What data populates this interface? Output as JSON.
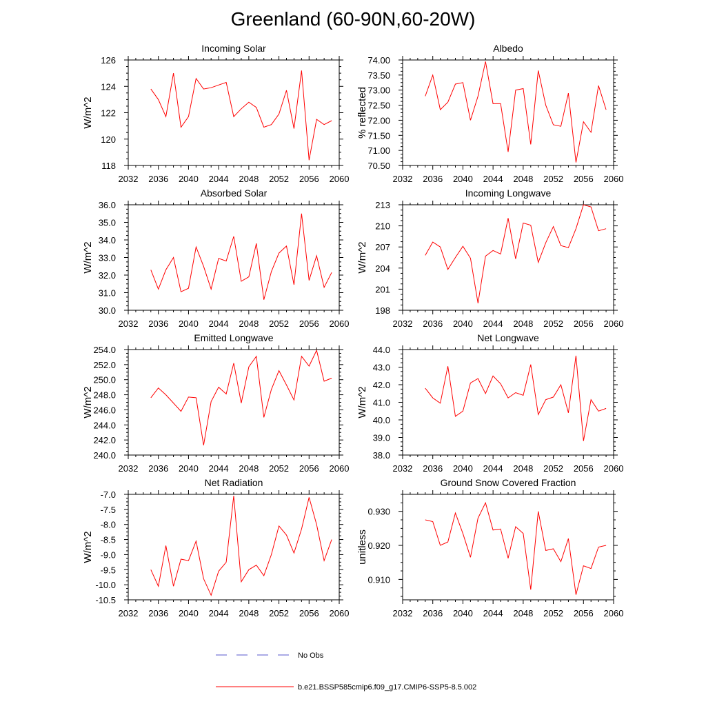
{
  "figure": {
    "title": "Greenland (60-90N,60-20W)"
  },
  "legend": {
    "items": [
      {
        "label": "No Obs",
        "color": "#5555cc",
        "style": "dashed"
      },
      {
        "label": "b.e21.BSSP585cmip6.f09_g17.CMIP6-SSP5-8.5.002",
        "color": "#ff0000",
        "style": "solid"
      }
    ]
  },
  "chart_data": [
    {
      "type": "line",
      "title": "Incoming Solar",
      "ylabel": "W/m^2",
      "xlim": [
        2032,
        2060
      ],
      "ylim": [
        118,
        126
      ],
      "yticks": [
        118,
        120,
        122,
        124,
        126
      ],
      "ytick_labels": [
        "118",
        "120",
        "122",
        "124",
        "126"
      ],
      "xticks": [
        2032,
        2036,
        2040,
        2044,
        2048,
        2052,
        2056,
        2060
      ],
      "x": [
        2035,
        2036,
        2037,
        2038,
        2039,
        2040,
        2041,
        2042,
        2043,
        2044,
        2045,
        2046,
        2047,
        2048,
        2049,
        2050,
        2051,
        2052,
        2053,
        2054,
        2055,
        2056,
        2057,
        2058,
        2059
      ],
      "series": [
        {
          "color": "#ff0000",
          "values": [
            123.8,
            123.0,
            121.7,
            125.0,
            120.9,
            121.7,
            124.6,
            123.8,
            123.9,
            124.1,
            124.3,
            121.7,
            122.3,
            122.8,
            122.4,
            120.9,
            121.1,
            121.9,
            123.7,
            120.8,
            125.2,
            118.4,
            121.5,
            121.1,
            121.4
          ]
        }
      ]
    },
    {
      "type": "line",
      "title": "Albedo",
      "ylabel": "% reflected",
      "xlim": [
        2032,
        2060
      ],
      "ylim": [
        70.5,
        74.0
      ],
      "yticks": [
        70.5,
        71.0,
        71.5,
        72.0,
        72.5,
        73.0,
        73.5,
        74.0
      ],
      "ytick_labels": [
        "70.50",
        "71.00",
        "71.50",
        "72.00",
        "72.50",
        "73.00",
        "73.50",
        "74.00"
      ],
      "xticks": [
        2032,
        2036,
        2040,
        2044,
        2048,
        2052,
        2056,
        2060
      ],
      "x": [
        2035,
        2036,
        2037,
        2038,
        2039,
        2040,
        2041,
        2042,
        2043,
        2044,
        2045,
        2046,
        2047,
        2048,
        2049,
        2050,
        2051,
        2052,
        2053,
        2054,
        2055,
        2056,
        2057,
        2058,
        2059
      ],
      "series": [
        {
          "color": "#ff0000",
          "values": [
            72.8,
            73.5,
            72.35,
            72.6,
            73.2,
            73.25,
            72.0,
            72.8,
            73.95,
            72.55,
            72.55,
            70.95,
            73.0,
            73.05,
            71.2,
            73.65,
            72.5,
            71.85,
            71.8,
            72.9,
            70.6,
            71.95,
            71.6,
            73.15,
            72.35
          ]
        }
      ]
    },
    {
      "type": "line",
      "title": "Absorbed Solar",
      "ylabel": "W/m^2",
      "xlim": [
        2032,
        2060
      ],
      "ylim": [
        30.0,
        36.0
      ],
      "yticks": [
        30,
        31,
        32,
        33,
        34,
        35,
        36
      ],
      "ytick_labels": [
        "30.0",
        "31.0",
        "32.0",
        "33.0",
        "34.0",
        "35.0",
        "36.0"
      ],
      "xticks": [
        2032,
        2036,
        2040,
        2044,
        2048,
        2052,
        2056,
        2060
      ],
      "x": [
        2035,
        2036,
        2037,
        2038,
        2039,
        2040,
        2041,
        2042,
        2043,
        2044,
        2045,
        2046,
        2047,
        2048,
        2049,
        2050,
        2051,
        2052,
        2053,
        2054,
        2055,
        2056,
        2057,
        2058,
        2059
      ],
      "series": [
        {
          "color": "#ff0000",
          "values": [
            32.3,
            31.2,
            32.3,
            33.0,
            31.05,
            31.25,
            33.6,
            32.5,
            31.2,
            32.95,
            32.8,
            34.2,
            31.65,
            31.9,
            33.8,
            30.6,
            32.2,
            33.25,
            33.65,
            31.45,
            35.5,
            31.7,
            33.1,
            31.3,
            32.15
          ]
        }
      ]
    },
    {
      "type": "line",
      "title": "Incoming Longwave",
      "ylabel": "W/m^2",
      "xlim": [
        2032,
        2060
      ],
      "ylim": [
        198,
        213
      ],
      "yticks": [
        198,
        201,
        204,
        207,
        210,
        213
      ],
      "ytick_labels": [
        "198",
        "201",
        "204",
        "207",
        "210",
        "213"
      ],
      "xticks": [
        2032,
        2036,
        2040,
        2044,
        2048,
        2052,
        2056,
        2060
      ],
      "x": [
        2035,
        2036,
        2037,
        2038,
        2039,
        2040,
        2041,
        2042,
        2043,
        2044,
        2045,
        2046,
        2047,
        2048,
        2049,
        2050,
        2051,
        2052,
        2053,
        2054,
        2055,
        2056,
        2057,
        2058,
        2059
      ],
      "series": [
        {
          "color": "#ff0000",
          "values": [
            205.8,
            207.7,
            207.0,
            203.8,
            205.5,
            207.1,
            205.4,
            199.0,
            205.7,
            206.5,
            206.0,
            211.1,
            205.3,
            210.4,
            210.1,
            204.8,
            207.6,
            209.9,
            207.2,
            206.9,
            209.6,
            213.0,
            212.7,
            209.3,
            209.6
          ]
        }
      ]
    },
    {
      "type": "line",
      "title": "Emitted Longwave",
      "ylabel": "W/m^2",
      "xlim": [
        2032,
        2060
      ],
      "ylim": [
        240.0,
        254.0
      ],
      "yticks": [
        240,
        242,
        244,
        246,
        248,
        250,
        252,
        254
      ],
      "ytick_labels": [
        "240.0",
        "242.0",
        "244.0",
        "246.0",
        "248.0",
        "250.0",
        "252.0",
        "254.0"
      ],
      "xticks": [
        2032,
        2036,
        2040,
        2044,
        2048,
        2052,
        2056,
        2060
      ],
      "x": [
        2035,
        2036,
        2037,
        2038,
        2039,
        2040,
        2041,
        2042,
        2043,
        2044,
        2045,
        2046,
        2047,
        2048,
        2049,
        2050,
        2051,
        2052,
        2053,
        2054,
        2055,
        2056,
        2057,
        2058,
        2059
      ],
      "series": [
        {
          "color": "#ff0000",
          "values": [
            247.6,
            248.9,
            248.0,
            246.9,
            245.8,
            247.7,
            247.6,
            241.3,
            247.1,
            249.0,
            248.1,
            252.2,
            246.9,
            251.7,
            253.1,
            245.0,
            248.7,
            251.2,
            249.3,
            247.3,
            253.1,
            251.8,
            253.9,
            249.8,
            250.2
          ]
        }
      ]
    },
    {
      "type": "line",
      "title": "Net Longwave",
      "ylabel": "W/m^2",
      "xlim": [
        2032,
        2060
      ],
      "ylim": [
        38.0,
        44.0
      ],
      "yticks": [
        38,
        39,
        40,
        41,
        42,
        43,
        44
      ],
      "ytick_labels": [
        "38.0",
        "39.0",
        "40.0",
        "41.0",
        "42.0",
        "43.0",
        "44.0"
      ],
      "xticks": [
        2032,
        2036,
        2040,
        2044,
        2048,
        2052,
        2056,
        2060
      ],
      "x": [
        2035,
        2036,
        2037,
        2038,
        2039,
        2040,
        2041,
        2042,
        2043,
        2044,
        2045,
        2046,
        2047,
        2048,
        2049,
        2050,
        2051,
        2052,
        2053,
        2054,
        2055,
        2056,
        2057,
        2058,
        2059
      ],
      "series": [
        {
          "color": "#ff0000",
          "values": [
            41.8,
            41.25,
            40.95,
            43.05,
            40.2,
            40.5,
            42.1,
            42.35,
            41.5,
            42.5,
            42.05,
            41.25,
            41.55,
            41.4,
            43.15,
            40.3,
            41.15,
            41.3,
            42.0,
            40.4,
            43.65,
            38.8,
            41.15,
            40.5,
            40.65
          ]
        }
      ]
    },
    {
      "type": "line",
      "title": "Net Radiation",
      "ylabel": "W/m^2",
      "xlim": [
        2032,
        2060
      ],
      "ylim": [
        -10.5,
        -7.0
      ],
      "yticks": [
        -10.5,
        -10.0,
        -9.5,
        -9.0,
        -8.5,
        -8.0,
        -7.5,
        -7.0
      ],
      "ytick_labels": [
        "-10.5",
        "-10.0",
        "-9.5",
        "-9.0",
        "-8.5",
        "-8.0",
        "-7.5",
        "-7.0"
      ],
      "xticks": [
        2032,
        2036,
        2040,
        2044,
        2048,
        2052,
        2056,
        2060
      ],
      "x": [
        2035,
        2036,
        2037,
        2038,
        2039,
        2040,
        2041,
        2042,
        2043,
        2044,
        2045,
        2046,
        2047,
        2048,
        2049,
        2050,
        2051,
        2052,
        2053,
        2054,
        2055,
        2056,
        2057,
        2058,
        2059
      ],
      "series": [
        {
          "color": "#ff0000",
          "values": [
            -9.5,
            -10.05,
            -8.7,
            -10.05,
            -9.15,
            -9.2,
            -8.55,
            -9.8,
            -10.35,
            -9.55,
            -9.25,
            -7.05,
            -9.9,
            -9.5,
            -9.35,
            -9.7,
            -9.0,
            -8.05,
            -8.35,
            -8.95,
            -8.15,
            -7.1,
            -8.0,
            -9.2,
            -8.5
          ]
        }
      ]
    },
    {
      "type": "line",
      "title": "Ground Snow Covered Fraction",
      "ylabel": "unitless",
      "xlim": [
        2032,
        2060
      ],
      "ylim": [
        0.904,
        0.935
      ],
      "yticks": [
        0.91,
        0.92,
        0.93
      ],
      "ytick_labels": [
        "0.910",
        "0.920",
        "0.930"
      ],
      "xticks": [
        2032,
        2036,
        2040,
        2044,
        2048,
        2052,
        2056,
        2060
      ],
      "x": [
        2035,
        2036,
        2037,
        2038,
        2039,
        2040,
        2041,
        2042,
        2043,
        2044,
        2045,
        2046,
        2047,
        2048,
        2049,
        2050,
        2051,
        2052,
        2053,
        2054,
        2055,
        2056,
        2057,
        2058,
        2059
      ],
      "series": [
        {
          "color": "#ff0000",
          "values": [
            0.9275,
            0.927,
            0.92,
            0.921,
            0.9295,
            0.9235,
            0.9165,
            0.928,
            0.9325,
            0.9245,
            0.9248,
            0.9162,
            0.9255,
            0.9235,
            0.907,
            0.93,
            0.9185,
            0.919,
            0.9152,
            0.922,
            0.9055,
            0.914,
            0.9132,
            0.9195,
            0.92
          ]
        }
      ]
    }
  ]
}
